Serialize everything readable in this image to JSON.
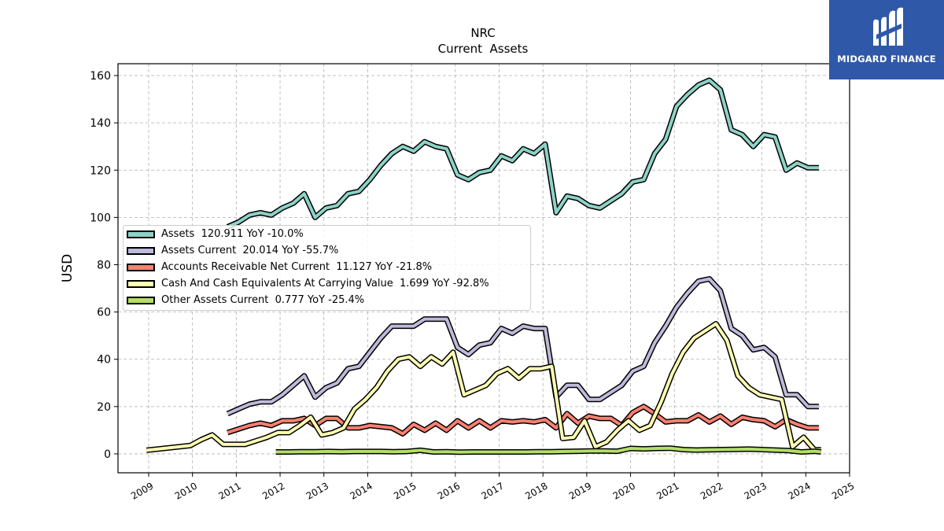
{
  "brand": {
    "name": "MIDGARD FINANCE",
    "color": "#2f58a9"
  },
  "chart_data": {
    "type": "line",
    "title": "NRC",
    "subtitle": "Current  Assets",
    "ylabel": "USD",
    "xlabel": "",
    "xlim": [
      2008.3,
      2025.0
    ],
    "ylim": [
      -8,
      165
    ],
    "yticks": [
      0,
      20,
      40,
      60,
      80,
      100,
      120,
      140,
      160
    ],
    "xticks": [
      "2009",
      "2010",
      "2011",
      "2012",
      "2013",
      "2014",
      "2015",
      "2016",
      "2017",
      "2018",
      "2019",
      "2020",
      "2021",
      "2022",
      "2023",
      "2024",
      "2025"
    ],
    "grid": true,
    "legend_position": "center-left",
    "series": [
      {
        "name": "Assets",
        "legend": "Assets  120.911 YoY -10.0%",
        "color": "#8dd3c7",
        "x": [
          2010.8,
          2011.05,
          2011.3,
          2011.55,
          2011.8,
          2012.05,
          2012.3,
          2012.55,
          2012.8,
          2013.05,
          2013.3,
          2013.55,
          2013.8,
          2014.05,
          2014.3,
          2014.55,
          2014.8,
          2015.05,
          2015.3,
          2015.55,
          2015.8,
          2016.05,
          2016.3,
          2016.55,
          2016.8,
          2017.05,
          2017.3,
          2017.55,
          2017.8,
          2018.05,
          2018.3,
          2018.55,
          2018.8,
          2019.05,
          2019.3,
          2019.55,
          2019.8,
          2020.05,
          2020.3,
          2020.55,
          2020.8,
          2021.05,
          2021.3,
          2021.55,
          2021.8,
          2022.05,
          2022.3,
          2022.55,
          2022.8,
          2023.05,
          2023.3,
          2023.55,
          2023.8,
          2024.05,
          2024.3
        ],
        "y": [
          96,
          98,
          101,
          102,
          101,
          104,
          106,
          110,
          100,
          104,
          105,
          110,
          111,
          116,
          122,
          127,
          130,
          128,
          132,
          130,
          129,
          118,
          116,
          119,
          120,
          126,
          124,
          129,
          127,
          131,
          102,
          109,
          108,
          105,
          104,
          107,
          110,
          115,
          116,
          127,
          133,
          147,
          152,
          156,
          158,
          154,
          137,
          135,
          130,
          135,
          134,
          120,
          123,
          121,
          121
        ]
      },
      {
        "name": "Assets Current",
        "legend": "Assets Current  20.014 YoY -55.7%",
        "color": "#bebada",
        "x": [
          2010.8,
          2011.05,
          2011.3,
          2011.55,
          2011.8,
          2012.05,
          2012.3,
          2012.55,
          2012.8,
          2013.05,
          2013.3,
          2013.55,
          2013.8,
          2014.05,
          2014.3,
          2014.55,
          2014.8,
          2015.05,
          2015.3,
          2015.55,
          2015.8,
          2016.05,
          2016.3,
          2016.55,
          2016.8,
          2017.05,
          2017.3,
          2017.55,
          2017.8,
          2018.05,
          2018.3,
          2018.55,
          2018.8,
          2019.05,
          2019.3,
          2019.55,
          2019.8,
          2020.05,
          2020.3,
          2020.55,
          2020.8,
          2021.05,
          2021.3,
          2021.55,
          2021.8,
          2022.05,
          2022.3,
          2022.55,
          2022.8,
          2023.05,
          2023.3,
          2023.55,
          2023.8,
          2024.05,
          2024.3
        ],
        "y": [
          17,
          19,
          21,
          22,
          22,
          25,
          29,
          33,
          24,
          28,
          30,
          36,
          37,
          43,
          49,
          54,
          54,
          54,
          57,
          57,
          57,
          45,
          42,
          46,
          47,
          53,
          51,
          54,
          53,
          53,
          24,
          29,
          29,
          23,
          23,
          26,
          29,
          35,
          37,
          47,
          54,
          62,
          68,
          73,
          74,
          69,
          53,
          50,
          44,
          45,
          41,
          25,
          25,
          20,
          20
        ]
      },
      {
        "name": "Accounts Receivable Net Current",
        "legend": "Accounts Receivable Net Current  11.127 YoY -21.8%",
        "color": "#fb8072",
        "x": [
          2010.8,
          2011.05,
          2011.3,
          2011.55,
          2011.8,
          2012.05,
          2012.3,
          2012.55,
          2012.8,
          2013.05,
          2013.3,
          2013.55,
          2013.8,
          2014.05,
          2014.3,
          2014.55,
          2014.8,
          2015.05,
          2015.3,
          2015.55,
          2015.8,
          2016.05,
          2016.3,
          2016.55,
          2016.8,
          2017.05,
          2017.3,
          2017.55,
          2017.8,
          2018.05,
          2018.3,
          2018.55,
          2018.8,
          2019.05,
          2019.3,
          2019.55,
          2019.8,
          2020.05,
          2020.3,
          2020.55,
          2020.8,
          2021.05,
          2021.3,
          2021.55,
          2021.8,
          2022.05,
          2022.3,
          2022.55,
          2022.8,
          2023.05,
          2023.3,
          2023.55,
          2023.8,
          2024.05,
          2024.3
        ],
        "y": [
          9,
          10.5,
          12,
          13,
          12,
          14,
          14,
          15,
          12,
          15,
          15,
          11,
          11,
          12,
          11.5,
          11,
          8.5,
          12.5,
          10,
          13,
          10,
          14,
          11,
          14,
          11,
          14,
          13.5,
          14,
          13.5,
          14.5,
          11,
          17,
          13,
          16,
          15,
          15,
          12,
          17.5,
          20,
          17,
          13.5,
          14,
          14,
          16.5,
          13.5,
          16,
          12.5,
          15.5,
          14.5,
          14,
          11.5,
          14.5,
          12.5,
          11,
          11
        ]
      },
      {
        "name": "Cash And Cash Equivalents At Carrying Value",
        "legend": "Cash And Cash Equivalents At Carrying Value  1.699 YoY -92.8%",
        "color": "#ffffb3",
        "x": [
          2008.95,
          2009.2,
          2009.45,
          2009.7,
          2009.95,
          2010.2,
          2010.45,
          2010.7,
          2010.95,
          2011.2,
          2011.45,
          2011.7,
          2011.95,
          2012.2,
          2012.45,
          2012.7,
          2012.95,
          2013.2,
          2013.45,
          2013.7,
          2013.95,
          2014.2,
          2014.45,
          2014.7,
          2014.95,
          2015.2,
          2015.45,
          2015.7,
          2015.95,
          2016.2,
          2016.45,
          2016.7,
          2016.95,
          2017.2,
          2017.45,
          2017.7,
          2017.95,
          2018.2,
          2018.45,
          2018.7,
          2018.95,
          2019.2,
          2019.45,
          2019.7,
          2019.95,
          2020.2,
          2020.45,
          2020.7,
          2020.95,
          2021.2,
          2021.45,
          2021.7,
          2021.95,
          2022.2,
          2022.45,
          2022.7,
          2022.95,
          2023.2,
          2023.45,
          2023.7,
          2023.95,
          2024.2,
          2024.35
        ],
        "y": [
          1.5,
          2,
          2.5,
          3,
          3.5,
          6,
          8,
          4,
          4,
          4,
          5.5,
          7,
          9,
          9,
          12,
          15.5,
          8,
          9,
          11,
          19,
          23,
          28,
          35,
          40,
          41,
          37,
          41,
          38,
          43,
          25,
          27,
          29,
          34,
          36,
          32,
          36,
          36,
          37,
          6.5,
          7,
          14,
          3,
          5,
          10,
          14,
          10,
          12,
          22,
          34,
          43,
          49,
          52,
          55,
          48,
          33,
          28,
          25,
          24,
          23,
          3,
          7,
          1.7,
          1.7
        ]
      },
      {
        "name": "Other Assets Current",
        "legend": "Other Assets Current  0.777 YoY -25.4%",
        "color": "#b3de69",
        "x": [
          2011.9,
          2012.2,
          2012.5,
          2012.8,
          2013.1,
          2013.4,
          2013.7,
          2014.0,
          2014.3,
          2014.6,
          2014.9,
          2015.2,
          2015.5,
          2015.8,
          2016.1,
          2016.4,
          2016.7,
          2017.0,
          2017.3,
          2017.6,
          2017.9,
          2018.2,
          2018.5,
          2018.8,
          2019.1,
          2019.4,
          2019.7,
          2020.0,
          2020.3,
          2020.6,
          2020.9,
          2021.2,
          2021.5,
          2021.8,
          2022.1,
          2022.4,
          2022.7,
          2023.0,
          2023.3,
          2023.6,
          2023.9,
          2024.2,
          2024.35
        ],
        "y": [
          0.8,
          0.8,
          0.9,
          0.9,
          1,
          0.9,
          1,
          1,
          1,
          0.9,
          1,
          1.5,
          0.8,
          0.9,
          0.7,
          0.8,
          0.8,
          0.8,
          0.8,
          0.8,
          0.9,
          0.9,
          1,
          1.1,
          1.2,
          1.2,
          1.1,
          2.3,
          2.1,
          2.3,
          2.4,
          1.8,
          1.6,
          1.7,
          1.8,
          1.9,
          2.0,
          1.8,
          1.6,
          1.4,
          0.8,
          1.1,
          0.8
        ]
      }
    ]
  }
}
